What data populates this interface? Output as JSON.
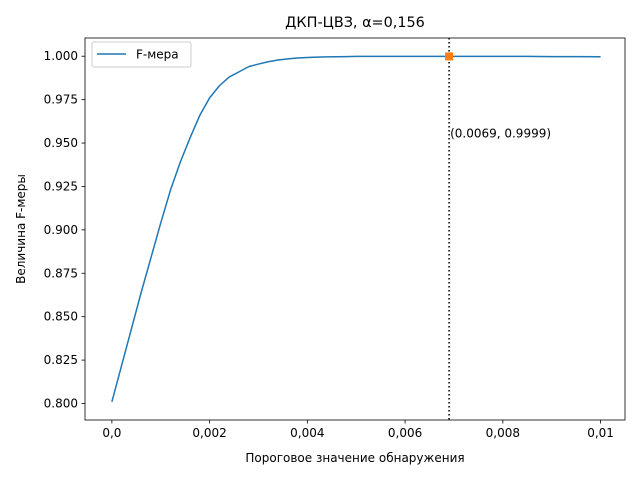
{
  "chart_data": {
    "type": "line",
    "title": "ДКП-ЦВЗ, α=0,156",
    "xlabel": "Пороговое значение обнаружения",
    "ylabel": "Величина F-меры",
    "xlim": [
      -0.00055,
      0.0105
    ],
    "ylim": [
      0.7905,
      1.0105
    ],
    "xticks": [
      0,
      0.002,
      0.004,
      0.006,
      0.008,
      0.01
    ],
    "xtick_labels": [
      "0,0",
      "0,002",
      "0,004",
      "0,006",
      "0,008",
      "0,01"
    ],
    "yticks": [
      0.8,
      0.825,
      0.85,
      0.875,
      0.9,
      0.925,
      0.95,
      0.975,
      1.0
    ],
    "ytick_labels": [
      "0.800",
      "0.825",
      "0.850",
      "0.875",
      "0.900",
      "0.925",
      "0.950",
      "0.975",
      "1.000"
    ],
    "grid": false,
    "legend_position": "upper-left",
    "series": [
      {
        "name": "F-мера",
        "color": "#1f77b4",
        "x": [
          0,
          0.0002,
          0.0004,
          0.0006,
          0.0008,
          0.001,
          0.0012,
          0.0014,
          0.0016,
          0.0018,
          0.002,
          0.0022,
          0.0024,
          0.0026,
          0.0028,
          0.003,
          0.0032,
          0.0034,
          0.0036,
          0.0038,
          0.004,
          0.0042,
          0.0044,
          0.0046,
          0.0048,
          0.005,
          0.0055,
          0.006,
          0.0065,
          0.007,
          0.0075,
          0.008,
          0.0085,
          0.009,
          0.0095,
          0.01
        ],
        "y": [
          0.801,
          0.822,
          0.843,
          0.864,
          0.884,
          0.904,
          0.923,
          0.939,
          0.953,
          0.966,
          0.976,
          0.983,
          0.988,
          0.991,
          0.994,
          0.9955,
          0.9968,
          0.9978,
          0.9985,
          0.999,
          0.9993,
          0.9995,
          0.9996,
          0.9997,
          0.9998,
          0.9999,
          0.9999,
          0.9999,
          0.9999,
          0.9999,
          0.9999,
          0.9999,
          0.9999,
          0.9998,
          0.9998,
          0.9997
        ]
      }
    ],
    "marker": {
      "x": 0.0069,
      "y": 0.9999,
      "color": "#ff7f0e",
      "shape": "square"
    },
    "vline": {
      "x": 0.0069,
      "style": "dotted",
      "color": "#000000"
    },
    "annotation": {
      "text": "(0.0069, 0.9999)",
      "x": 0.0069,
      "y": 0.953
    }
  }
}
